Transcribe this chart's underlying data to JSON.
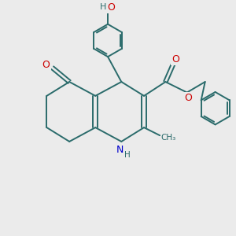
{
  "bg_color": "#ebebeb",
  "bond_color": "#2a6b6b",
  "bond_width": 1.4,
  "atom_colors": {
    "O": "#cc0000",
    "N": "#0000cc",
    "H": "#2a6b6b",
    "C": "#2a6b6b"
  },
  "figsize": [
    3.0,
    3.0
  ],
  "dpi": 100
}
